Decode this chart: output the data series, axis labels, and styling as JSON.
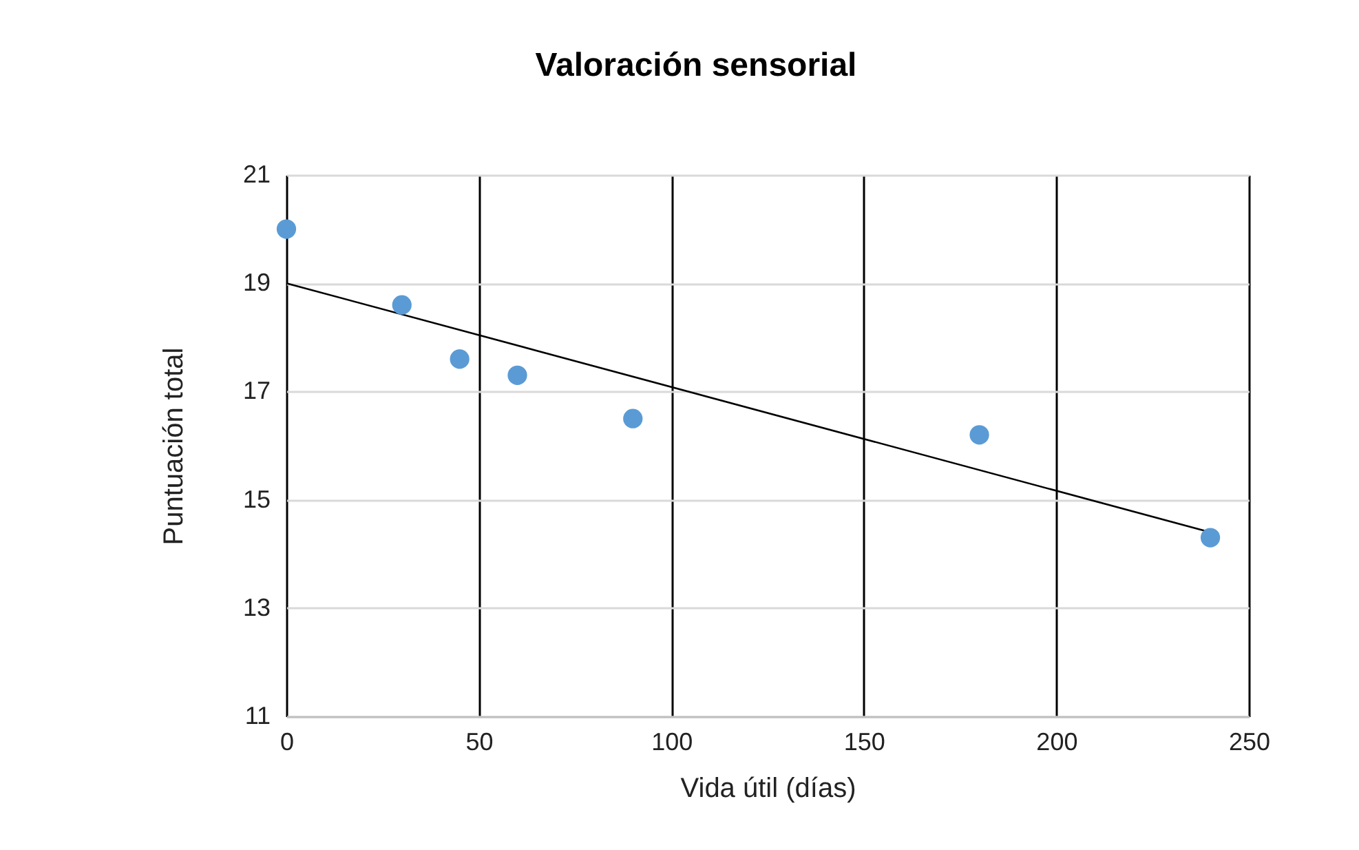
{
  "chart_data": {
    "type": "scatter",
    "title": "Valoración sensorial",
    "xlabel": "Vida útil (días)",
    "ylabel": "Puntuación total",
    "xlim": [
      0,
      250
    ],
    "xticks": [
      0,
      50,
      100,
      150,
      200,
      250
    ],
    "ylim": [
      11,
      21
    ],
    "yticks": [
      11,
      13,
      15,
      17,
      19,
      21
    ],
    "grid": true,
    "series": [
      {
        "color": "#5b9bd5",
        "marker": "circle",
        "x": [
          0,
          30,
          45,
          60,
          90,
          180,
          240
        ],
        "values": [
          20.0,
          18.6,
          17.6,
          17.3,
          16.5,
          16.2,
          14.3
        ]
      },
      {
        "type": "line",
        "color": "#000000",
        "x": [
          0,
          240
        ],
        "values": [
          19.0,
          14.4
        ],
        "line_style": "solid"
      }
    ]
  }
}
